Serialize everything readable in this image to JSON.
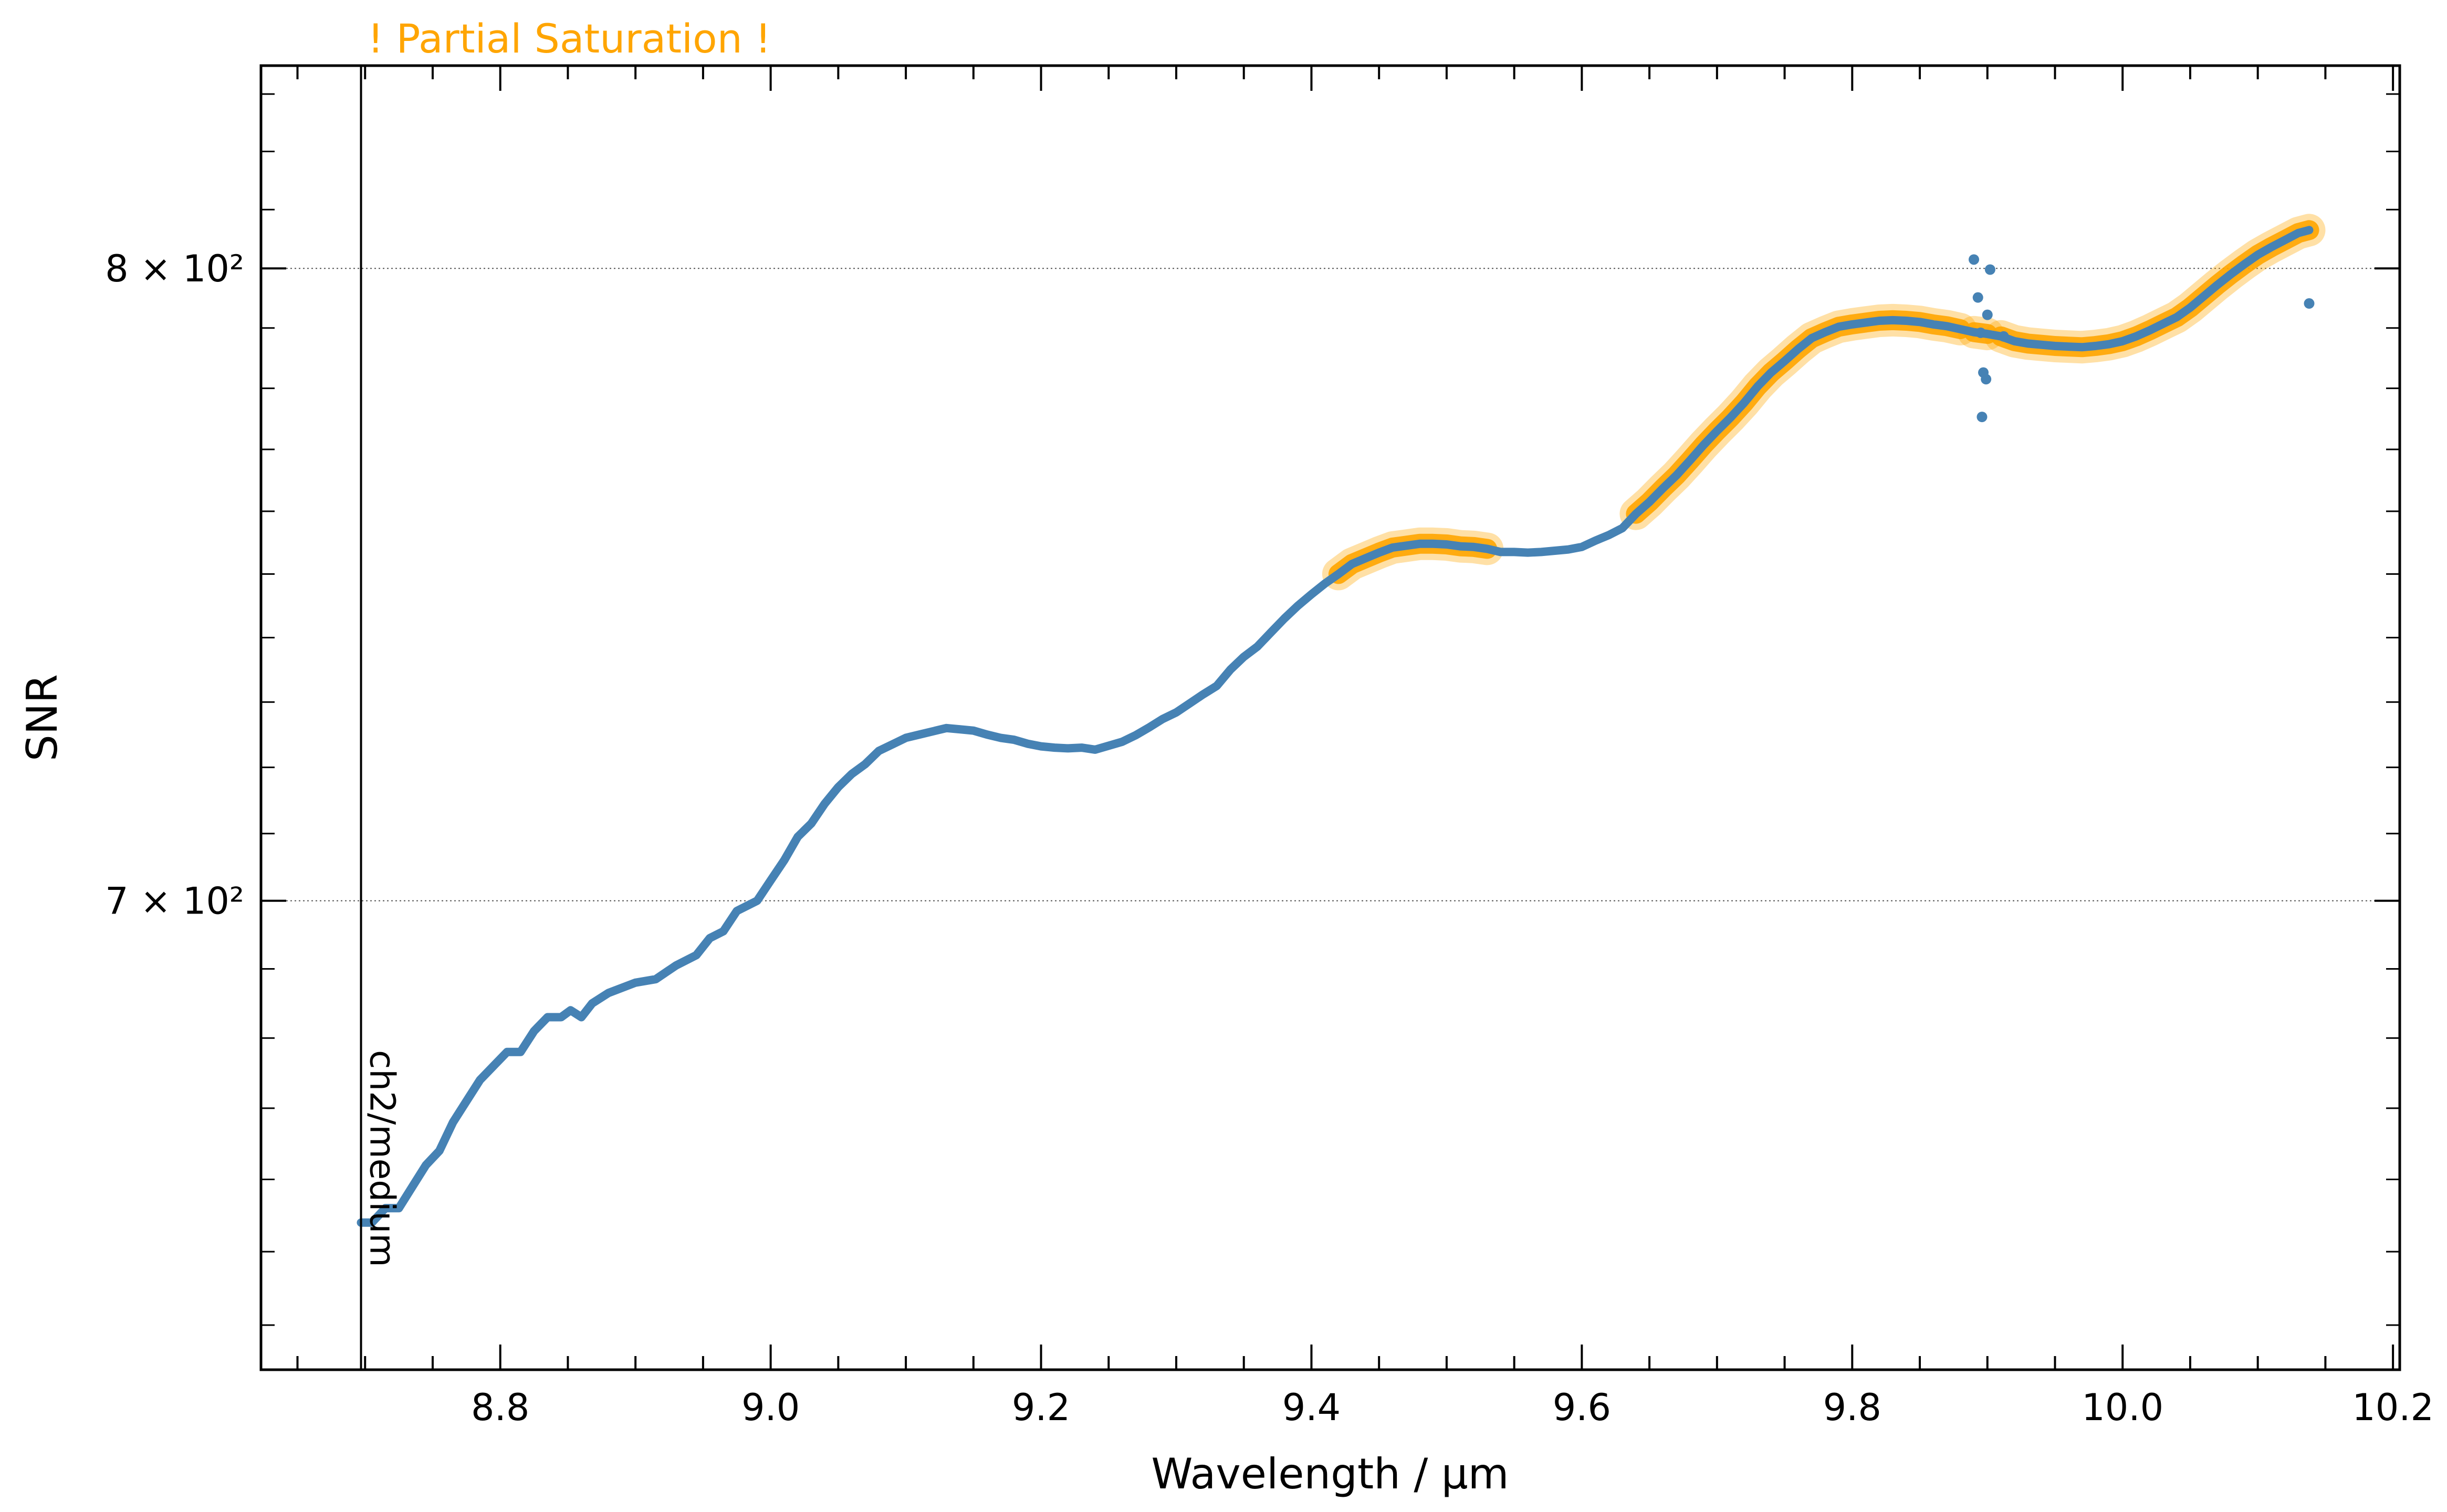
{
  "chart_data": {
    "type": "line",
    "title": "",
    "warning": "! Partial Saturation !",
    "xlabel": "Wavelength / µm",
    "ylabel": "SNR",
    "xlim": [
      8.623,
      10.205
    ],
    "ylim": [
      634,
      835
    ],
    "y_scale": "log",
    "xticks": [
      8.8,
      9.0,
      9.2,
      9.4,
      9.6,
      9.8,
      10.0,
      10.2
    ],
    "xtick_labels": [
      "8.8",
      "9.0",
      "9.2",
      "9.4",
      "9.6",
      "9.8",
      "10.0",
      "10.2"
    ],
    "yticks": [
      700,
      800
    ],
    "ytick_labels": [
      "7 × 10²",
      "8 × 10²"
    ],
    "grid": "horizontal dotted at major y ticks",
    "vertical_line": {
      "x": 8.697,
      "label": "ch2/medium"
    },
    "colors": {
      "line": "#4682b4",
      "saturation": "#ffa500",
      "warning_text": "#ffa500",
      "axes": "#000000"
    },
    "series": [
      {
        "type": "line",
        "values": [
          [
            8.697,
            654
          ],
          [
            8.705,
            654
          ],
          [
            8.715,
            656
          ],
          [
            8.725,
            656
          ],
          [
            8.735,
            659
          ],
          [
            8.745,
            662
          ],
          [
            8.755,
            664
          ],
          [
            8.765,
            668
          ],
          [
            8.775,
            671
          ],
          [
            8.785,
            674
          ],
          [
            8.795,
            676
          ],
          [
            8.805,
            678
          ],
          [
            8.815,
            678
          ],
          [
            8.825,
            681
          ],
          [
            8.835,
            683
          ],
          [
            8.845,
            683
          ],
          [
            8.852,
            684
          ],
          [
            8.86,
            683
          ],
          [
            8.868,
            685
          ],
          [
            8.88,
            686.5
          ],
          [
            8.9,
            688
          ],
          [
            8.915,
            688.5
          ],
          [
            8.93,
            690.5
          ],
          [
            8.945,
            692
          ],
          [
            8.955,
            694.5
          ],
          [
            8.965,
            695.5
          ],
          [
            8.975,
            698.5
          ],
          [
            8.99,
            700
          ],
          [
            9.0,
            703
          ],
          [
            9.01,
            706
          ],
          [
            9.02,
            709.5
          ],
          [
            9.03,
            711.5
          ],
          [
            9.04,
            714.5
          ],
          [
            9.05,
            717
          ],
          [
            9.06,
            719
          ],
          [
            9.07,
            720.5
          ],
          [
            9.08,
            722.5
          ],
          [
            9.09,
            723.5
          ],
          [
            9.1,
            724.5
          ],
          [
            9.11,
            725
          ],
          [
            9.12,
            725.5
          ],
          [
            9.13,
            726
          ],
          [
            9.14,
            725.8
          ],
          [
            9.15,
            725.6
          ],
          [
            9.16,
            725
          ],
          [
            9.17,
            724.5
          ],
          [
            9.18,
            724.2
          ],
          [
            9.19,
            723.6
          ],
          [
            9.2,
            723.2
          ],
          [
            9.21,
            723
          ],
          [
            9.22,
            722.9
          ],
          [
            9.23,
            723
          ],
          [
            9.24,
            722.7
          ],
          [
            9.25,
            723.3
          ],
          [
            9.26,
            723.9
          ],
          [
            9.27,
            724.9
          ],
          [
            9.28,
            726.1
          ],
          [
            9.29,
            727.4
          ],
          [
            9.3,
            728.4
          ],
          [
            9.31,
            729.8
          ],
          [
            9.32,
            731.2
          ],
          [
            9.33,
            732.5
          ],
          [
            9.34,
            735
          ],
          [
            9.35,
            737
          ],
          [
            9.36,
            738.6
          ],
          [
            9.37,
            740.8
          ],
          [
            9.38,
            743
          ],
          [
            9.39,
            745
          ],
          [
            9.4,
            746.8
          ],
          [
            9.41,
            748.5
          ],
          [
            9.42,
            750
          ],
          [
            9.43,
            751.6
          ],
          [
            9.44,
            752.5
          ],
          [
            9.45,
            753.4
          ],
          [
            9.46,
            754.2
          ],
          [
            9.47,
            754.5
          ],
          [
            9.48,
            754.8
          ],
          [
            9.49,
            754.8
          ],
          [
            9.5,
            754.7
          ],
          [
            9.51,
            754.4
          ],
          [
            9.52,
            754.3
          ],
          [
            9.53,
            754
          ],
          [
            9.54,
            753.5
          ],
          [
            9.55,
            753.5
          ],
          [
            9.56,
            753.4
          ],
          [
            9.57,
            753.5
          ],
          [
            9.58,
            753.7
          ],
          [
            9.59,
            753.9
          ],
          [
            9.6,
            754.3
          ],
          [
            9.61,
            755.3
          ],
          [
            9.62,
            756.2
          ],
          [
            9.63,
            757.3
          ],
          [
            9.64,
            759.6
          ],
          [
            9.65,
            761.5
          ],
          [
            9.66,
            763.7
          ],
          [
            9.67,
            765.8
          ],
          [
            9.68,
            768.2
          ],
          [
            9.69,
            770.7
          ],
          [
            9.7,
            773
          ],
          [
            9.71,
            775.2
          ],
          [
            9.72,
            777.6
          ],
          [
            9.73,
            780.3
          ],
          [
            9.74,
            782.6
          ],
          [
            9.75,
            784.5
          ],
          [
            9.76,
            786.5
          ],
          [
            9.77,
            788.3
          ],
          [
            9.78,
            789.3
          ],
          [
            9.79,
            790.2
          ],
          [
            9.8,
            790.6
          ],
          [
            9.81,
            790.9
          ],
          [
            9.82,
            791.2
          ],
          [
            9.83,
            791.3
          ],
          [
            9.84,
            791.2
          ],
          [
            9.85,
            791
          ],
          [
            9.86,
            790.6
          ],
          [
            9.87,
            790.3
          ],
          [
            9.88,
            789.8
          ],
          [
            9.89,
            789.3
          ],
          [
            9.9,
            789
          ],
          [
            9.91,
            788.6
          ],
          [
            9.92,
            787.8
          ],
          [
            9.93,
            787.4
          ],
          [
            9.94,
            787.2
          ],
          [
            9.95,
            787
          ],
          [
            9.96,
            786.9
          ],
          [
            9.97,
            786.8
          ],
          [
            9.98,
            787
          ],
          [
            9.99,
            787.3
          ],
          [
            10.0,
            787.8
          ],
          [
            10.01,
            788.6
          ],
          [
            10.02,
            789.6
          ],
          [
            10.03,
            790.7
          ],
          [
            10.04,
            791.8
          ],
          [
            10.05,
            793.4
          ],
          [
            10.06,
            795.3
          ],
          [
            10.07,
            797.2
          ],
          [
            10.08,
            799
          ],
          [
            10.09,
            800.7
          ],
          [
            10.1,
            802.3
          ],
          [
            10.11,
            803.6
          ],
          [
            10.12,
            804.8
          ],
          [
            10.13,
            806
          ],
          [
            10.138,
            806.5
          ]
        ]
      }
    ],
    "scatter_points": [
      [
        9.89,
        801.5
      ],
      [
        9.893,
        795.1
      ],
      [
        9.895,
        789.2
      ],
      [
        9.897,
        782.6
      ],
      [
        9.899,
        781.5
      ],
      [
        9.896,
        775.3
      ],
      [
        9.9,
        792.2
      ],
      [
        9.902,
        799.8
      ],
      [
        9.912,
        788.6
      ],
      [
        10.138,
        794.1
      ]
    ],
    "saturation_ranges": [
      [
        9.42,
        9.53
      ],
      [
        9.64,
        9.88
      ],
      [
        9.884,
        9.905
      ],
      [
        9.905,
        10.14
      ]
    ]
  }
}
